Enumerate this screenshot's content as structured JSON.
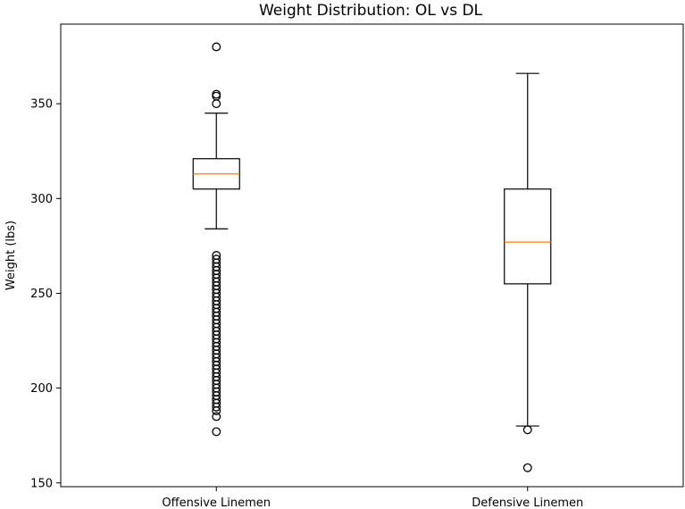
{
  "chart_data": {
    "type": "boxplot",
    "title": "Weight Distribution: OL vs DL",
    "xlabel": "",
    "ylabel": "Weight (lbs)",
    "ylim": [
      148,
      392
    ],
    "yticks": [
      150,
      200,
      250,
      300,
      350
    ],
    "categories": [
      "Offensive Linemen",
      "Defensive Linemen"
    ],
    "grid": false,
    "boxes": [
      {
        "name": "Offensive Linemen",
        "whisker_low": 284,
        "q1": 305,
        "median": 313,
        "q3": 321,
        "whisker_high": 345,
        "outliers": [
          380,
          355,
          354,
          350,
          270,
          268,
          266,
          264,
          262,
          260,
          258,
          256,
          254,
          252,
          250,
          248,
          246,
          244,
          242,
          240,
          238,
          236,
          234,
          232,
          230,
          228,
          226,
          224,
          222,
          220,
          218,
          216,
          214,
          212,
          210,
          208,
          206,
          204,
          202,
          200,
          198,
          196,
          194,
          192,
          190,
          188,
          185,
          177
        ]
      },
      {
        "name": "Defensive Linemen",
        "whisker_low": 180,
        "q1": 255,
        "median": 277,
        "q3": 305,
        "whisker_high": 366,
        "outliers": [
          178,
          158
        ]
      }
    ],
    "colors": {
      "box": "#000000",
      "median": "#ff7f0e",
      "outlier": "#000000"
    }
  }
}
